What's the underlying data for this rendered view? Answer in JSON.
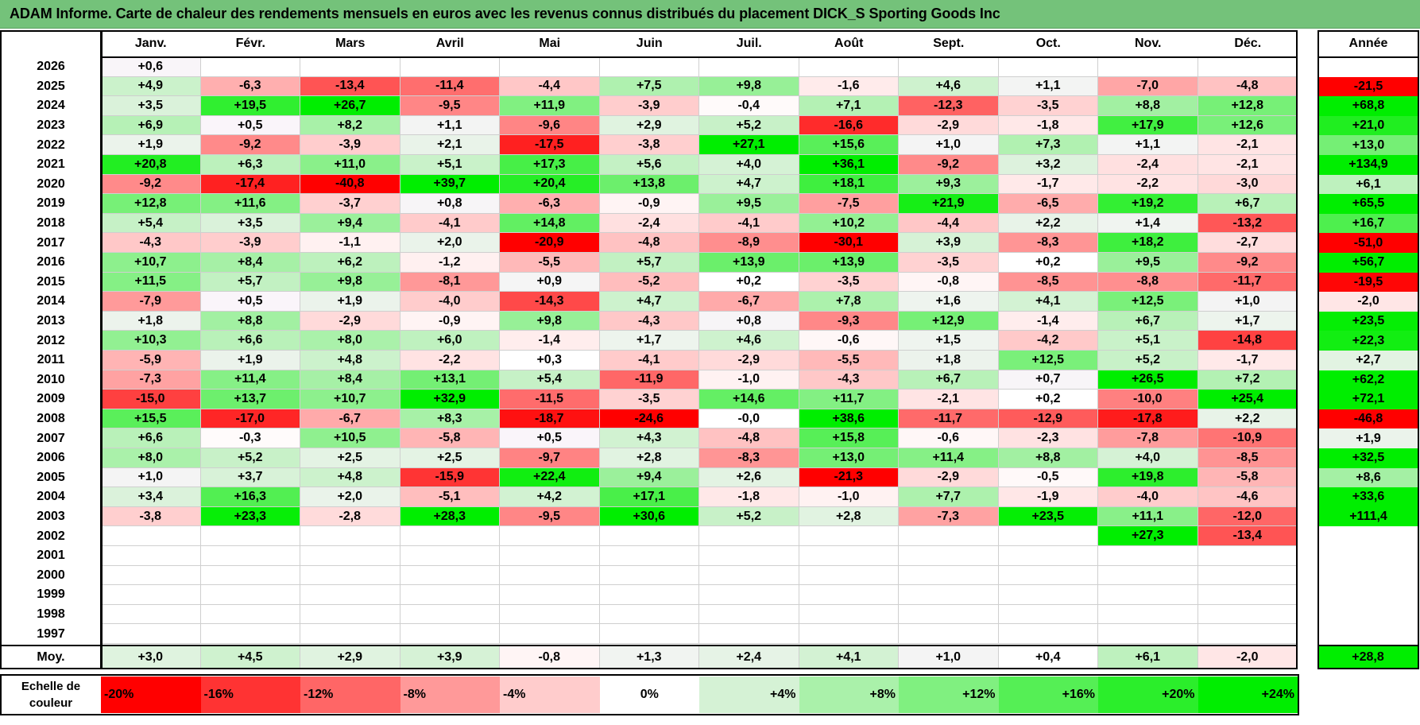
{
  "title": "ADAM Informe. Carte de chaleur des rendements mensuels en euros avec les revenus connus distribués du placement DICK_S Sporting Goods Inc",
  "months": [
    "Janv.",
    "Févr.",
    "Mars",
    "Avril",
    "Mai",
    "Juin",
    "Juil.",
    "Août",
    "Sept.",
    "Oct.",
    "Nov.",
    "Déc."
  ],
  "year_header": "Année",
  "avg_label": "Moy.",
  "scale_label": "Echelle de couleur",
  "chart_data": {
    "type": "heatmap",
    "title": "ADAM Informe. Carte de chaleur des rendements mensuels en euros avec les revenus connus distribués du placement DICK_S Sporting Goods Inc",
    "columns": [
      "Janv.",
      "Févr.",
      "Mars",
      "Avril",
      "Mai",
      "Juin",
      "Juil.",
      "Août",
      "Sept.",
      "Oct.",
      "Nov.",
      "Déc."
    ],
    "rows": [
      {
        "year": "2026",
        "values": [
          "+0,6",
          "",
          "",
          "",
          "",
          "",
          "",
          "",
          "",
          "",
          "",
          ""
        ],
        "annual": ""
      },
      {
        "year": "2025",
        "values": [
          "+4,9",
          "-6,3",
          "-13,4",
          "-11,4",
          "-4,4",
          "+7,5",
          "+9,8",
          "-1,6",
          "+4,6",
          "+1,1",
          "-7,0",
          "-4,8"
        ],
        "annual": "-21,5"
      },
      {
        "year": "2024",
        "values": [
          "+3,5",
          "+19,5",
          "+26,7",
          "-9,5",
          "+11,9",
          "-3,9",
          "-0,4",
          "+7,1",
          "-12,3",
          "-3,5",
          "+8,8",
          "+12,8"
        ],
        "annual": "+68,8"
      },
      {
        "year": "2023",
        "values": [
          "+6,9",
          "+0,5",
          "+8,2",
          "+1,1",
          "-9,6",
          "+2,9",
          "+5,2",
          "-16,6",
          "-2,9",
          "-1,8",
          "+17,9",
          "+12,6"
        ],
        "annual": "+21,0"
      },
      {
        "year": "2022",
        "values": [
          "+1,9",
          "-9,2",
          "-3,9",
          "+2,1",
          "-17,5",
          "-3,8",
          "+27,1",
          "+15,6",
          "+1,0",
          "+7,3",
          "+1,1",
          "-2,1"
        ],
        "annual": "+13,0"
      },
      {
        "year": "2021",
        "values": [
          "+20,8",
          "+6,3",
          "+11,0",
          "+5,1",
          "+17,3",
          "+5,6",
          "+4,0",
          "+36,1",
          "-9,2",
          "+3,2",
          "-2,4",
          "-2,1"
        ],
        "annual": "+134,9"
      },
      {
        "year": "2020",
        "values": [
          "-9,2",
          "-17,4",
          "-40,8",
          "+39,7",
          "+20,4",
          "+13,8",
          "+4,7",
          "+18,1",
          "+9,3",
          "-1,7",
          "-2,2",
          "-3,0"
        ],
        "annual": "+6,1"
      },
      {
        "year": "2019",
        "values": [
          "+12,8",
          "+11,6",
          "-3,7",
          "+0,8",
          "-6,3",
          "-0,9",
          "+9,5",
          "-7,5",
          "+21,9",
          "-6,5",
          "+19,2",
          "+6,7"
        ],
        "annual": "+65,5"
      },
      {
        "year": "2018",
        "values": [
          "+5,4",
          "+3,5",
          "+9,4",
          "-4,1",
          "+14,8",
          "-2,4",
          "-4,1",
          "+10,2",
          "-4,4",
          "+2,2",
          "+1,4",
          "-13,2"
        ],
        "annual": "+16,7"
      },
      {
        "year": "2017",
        "values": [
          "-4,3",
          "-3,9",
          "-1,1",
          "+2,0",
          "-20,9",
          "-4,8",
          "-8,9",
          "-30,1",
          "+3,9",
          "-8,3",
          "+18,2",
          "-2,7"
        ],
        "annual": "-51,0"
      },
      {
        "year": "2016",
        "values": [
          "+10,7",
          "+8,4",
          "+6,2",
          "-1,2",
          "-5,5",
          "+5,7",
          "+13,9",
          "+13,9",
          "-3,5",
          "+0,2",
          "+9,5",
          "-9,2"
        ],
        "annual": "+56,7"
      },
      {
        "year": "2015",
        "values": [
          "+11,5",
          "+5,7",
          "+9,8",
          "-8,1",
          "+0,9",
          "-5,2",
          "+0,2",
          "-3,5",
          "-0,8",
          "-8,5",
          "-8,8",
          "-11,7"
        ],
        "annual": "-19,5"
      },
      {
        "year": "2014",
        "values": [
          "-7,9",
          "+0,5",
          "+1,9",
          "-4,0",
          "-14,3",
          "+4,7",
          "-6,7",
          "+7,8",
          "+1,6",
          "+4,1",
          "+12,5",
          "+1,0"
        ],
        "annual": "-2,0"
      },
      {
        "year": "2013",
        "values": [
          "+1,8",
          "+8,8",
          "-2,9",
          "-0,9",
          "+9,8",
          "-4,3",
          "+0,8",
          "-9,3",
          "+12,9",
          "-1,4",
          "+6,7",
          "+1,7"
        ],
        "annual": "+23,5"
      },
      {
        "year": "2012",
        "values": [
          "+10,3",
          "+6,6",
          "+8,0",
          "+6,0",
          "-1,4",
          "+1,7",
          "+4,6",
          "-0,6",
          "+1,5",
          "-4,2",
          "+5,1",
          "-14,8"
        ],
        "annual": "+22,3"
      },
      {
        "year": "2011",
        "values": [
          "-5,9",
          "+1,9",
          "+4,8",
          "-2,2",
          "+0,3",
          "-4,1",
          "-2,9",
          "-5,5",
          "+1,8",
          "+12,5",
          "+5,2",
          "-1,7"
        ],
        "annual": "+2,7"
      },
      {
        "year": "2010",
        "values": [
          "-7,3",
          "+11,4",
          "+8,4",
          "+13,1",
          "+5,4",
          "-11,9",
          "-1,0",
          "-4,3",
          "+6,7",
          "+0,7",
          "+26,5",
          "+7,2"
        ],
        "annual": "+62,2"
      },
      {
        "year": "2009",
        "values": [
          "-15,0",
          "+13,7",
          "+10,7",
          "+32,9",
          "-11,5",
          "-3,5",
          "+14,6",
          "+11,7",
          "-2,1",
          "+0,2",
          "-10,0",
          "+25,4"
        ],
        "annual": "+72,1"
      },
      {
        "year": "2008",
        "values": [
          "+15,5",
          "-17,0",
          "-6,7",
          "+8,3",
          "-18,7",
          "-24,6",
          "-0,0",
          "+38,6",
          "-11,7",
          "-12,9",
          "-17,8",
          "+2,2"
        ],
        "annual": "-46,8"
      },
      {
        "year": "2007",
        "values": [
          "+6,6",
          "-0,3",
          "+10,5",
          "-5,8",
          "+0,5",
          "+4,3",
          "-4,8",
          "+15,8",
          "-0,6",
          "-2,3",
          "-7,8",
          "-10,9"
        ],
        "annual": "+1,9"
      },
      {
        "year": "2006",
        "values": [
          "+8,0",
          "+5,2",
          "+2,5",
          "+2,5",
          "-9,7",
          "+2,8",
          "-8,3",
          "+13,0",
          "+11,4",
          "+8,8",
          "+4,0",
          "-8,5"
        ],
        "annual": "+32,5"
      },
      {
        "year": "2005",
        "values": [
          "+1,0",
          "+3,7",
          "+4,8",
          "-15,9",
          "+22,4",
          "+9,4",
          "+2,6",
          "-21,3",
          "-2,9",
          "-0,5",
          "+19,8",
          "-5,8"
        ],
        "annual": "+8,6"
      },
      {
        "year": "2004",
        "values": [
          "+3,4",
          "+16,3",
          "+2,0",
          "-5,1",
          "+4,2",
          "+17,1",
          "-1,8",
          "-1,0",
          "+7,7",
          "-1,9",
          "-4,0",
          "-4,6"
        ],
        "annual": "+33,6"
      },
      {
        "year": "2003",
        "values": [
          "-3,8",
          "+23,3",
          "-2,8",
          "+28,3",
          "-9,5",
          "+30,6",
          "+5,2",
          "+2,8",
          "-7,3",
          "+23,5",
          "+11,1",
          "-12,0"
        ],
        "annual": "+111,4"
      },
      {
        "year": "2002",
        "values": [
          "",
          "",
          "",
          "",
          "",
          "",
          "",
          "",
          "",
          "",
          "+27,3",
          "-13,4"
        ],
        "annual": ""
      },
      {
        "year": "2001",
        "values": [
          "",
          "",
          "",
          "",
          "",
          "",
          "",
          "",
          "",
          "",
          "",
          ""
        ],
        "annual": ""
      },
      {
        "year": "2000",
        "values": [
          "",
          "",
          "",
          "",
          "",
          "",
          "",
          "",
          "",
          "",
          "",
          ""
        ],
        "annual": ""
      },
      {
        "year": "1999",
        "values": [
          "",
          "",
          "",
          "",
          "",
          "",
          "",
          "",
          "",
          "",
          "",
          ""
        ],
        "annual": ""
      },
      {
        "year": "1998",
        "values": [
          "",
          "",
          "",
          "",
          "",
          "",
          "",
          "",
          "",
          "",
          "",
          ""
        ],
        "annual": ""
      },
      {
        "year": "1997",
        "values": [
          "",
          "",
          "",
          "",
          "",
          "",
          "",
          "",
          "",
          "",
          "",
          ""
        ],
        "annual": ""
      }
    ],
    "average": {
      "values": [
        "+3,0",
        "+4,5",
        "+2,9",
        "+3,9",
        "-0,8",
        "+1,3",
        "+2,4",
        "+4,1",
        "+1,0",
        "+0,4",
        "+6,1",
        "-2,0"
      ],
      "annual": "+28,8"
    },
    "color_scale": [
      "-20%",
      "-16%",
      "-12%",
      "-8%",
      "-4%",
      "0%",
      "+4%",
      "+8%",
      "+12%",
      "+16%",
      "+20%",
      "+24%"
    ]
  },
  "colors": {
    "title_bg": "#74c27a",
    "neg_max": "#ff0000",
    "pos_max": "#00ee00",
    "neutral": "#ffffff"
  }
}
